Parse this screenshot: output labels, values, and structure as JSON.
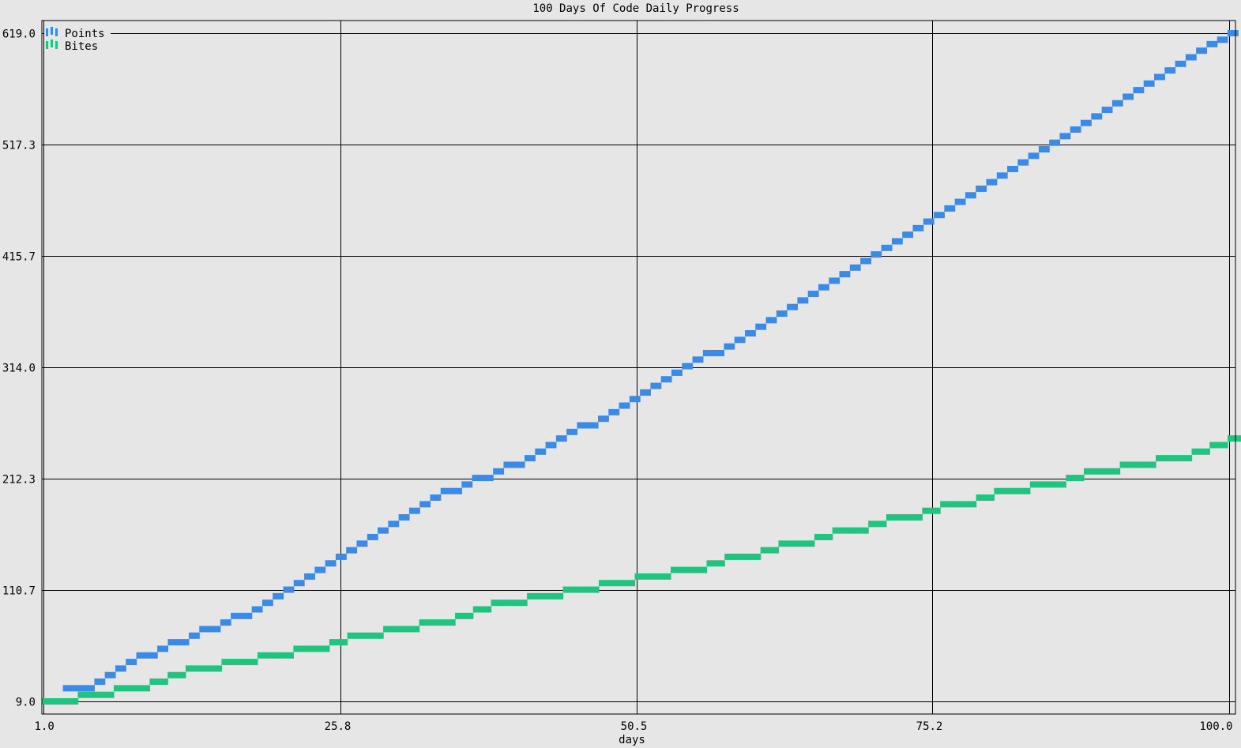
{
  "chart_data": {
    "type": "line",
    "title": "100 Days Of Code Daily Progress",
    "xlabel": "days",
    "ylabel": "",
    "xlim": [
      1,
      100
    ],
    "ylim": [
      9,
      619
    ],
    "x_ticks": [
      "1.0",
      "25.8",
      "50.5",
      "75.2",
      "100.0"
    ],
    "y_ticks": [
      "9.0",
      "110.7",
      "212.3",
      "314.0",
      "415.7",
      "517.3",
      "619.0"
    ],
    "grid": true,
    "legend": "top-left",
    "series": [
      {
        "name": "Points",
        "color": "#3b8ae6",
        "values": [
          9,
          9,
          21,
          21,
          21,
          27,
          33,
          39,
          45,
          51,
          51,
          57,
          63,
          63,
          69,
          75,
          75,
          81,
          87,
          87,
          93,
          99,
          105,
          111,
          117,
          123,
          129,
          135,
          141,
          147,
          153,
          159,
          165,
          171,
          177,
          183,
          189,
          195,
          201,
          201,
          207,
          213,
          213,
          219,
          225,
          225,
          231,
          237,
          243,
          249,
          255,
          261,
          261,
          267,
          273,
          279,
          285,
          291,
          297,
          303,
          309,
          315,
          321,
          327,
          327,
          333,
          339,
          345,
          351,
          357,
          363,
          369,
          375,
          381,
          387,
          393,
          399,
          405,
          411,
          417,
          423,
          429,
          435,
          441,
          447,
          453,
          459,
          465,
          471,
          477,
          483,
          489,
          495,
          501,
          507,
          513,
          519,
          525,
          531,
          537,
          543,
          549,
          555,
          561,
          567,
          573,
          579,
          585,
          591,
          597,
          603,
          609,
          613,
          619
        ]
      },
      {
        "name": "Bites",
        "color": "#21c47f",
        "values": [
          9,
          9,
          15,
          15,
          21,
          21,
          27,
          33,
          39,
          39,
          45,
          45,
          51,
          51,
          57,
          57,
          63,
          69,
          69,
          75,
          75,
          81,
          81,
          87,
          93,
          99,
          99,
          105,
          105,
          111,
          111,
          117,
          117,
          123,
          123,
          129,
          129,
          135,
          141,
          141,
          147,
          153,
          153,
          159,
          165,
          165,
          171,
          177,
          177,
          183,
          189,
          189,
          195,
          201,
          201,
          207,
          207,
          213,
          219,
          219,
          225,
          225,
          231,
          231,
          237,
          243,
          249
        ]
      }
    ]
  }
}
